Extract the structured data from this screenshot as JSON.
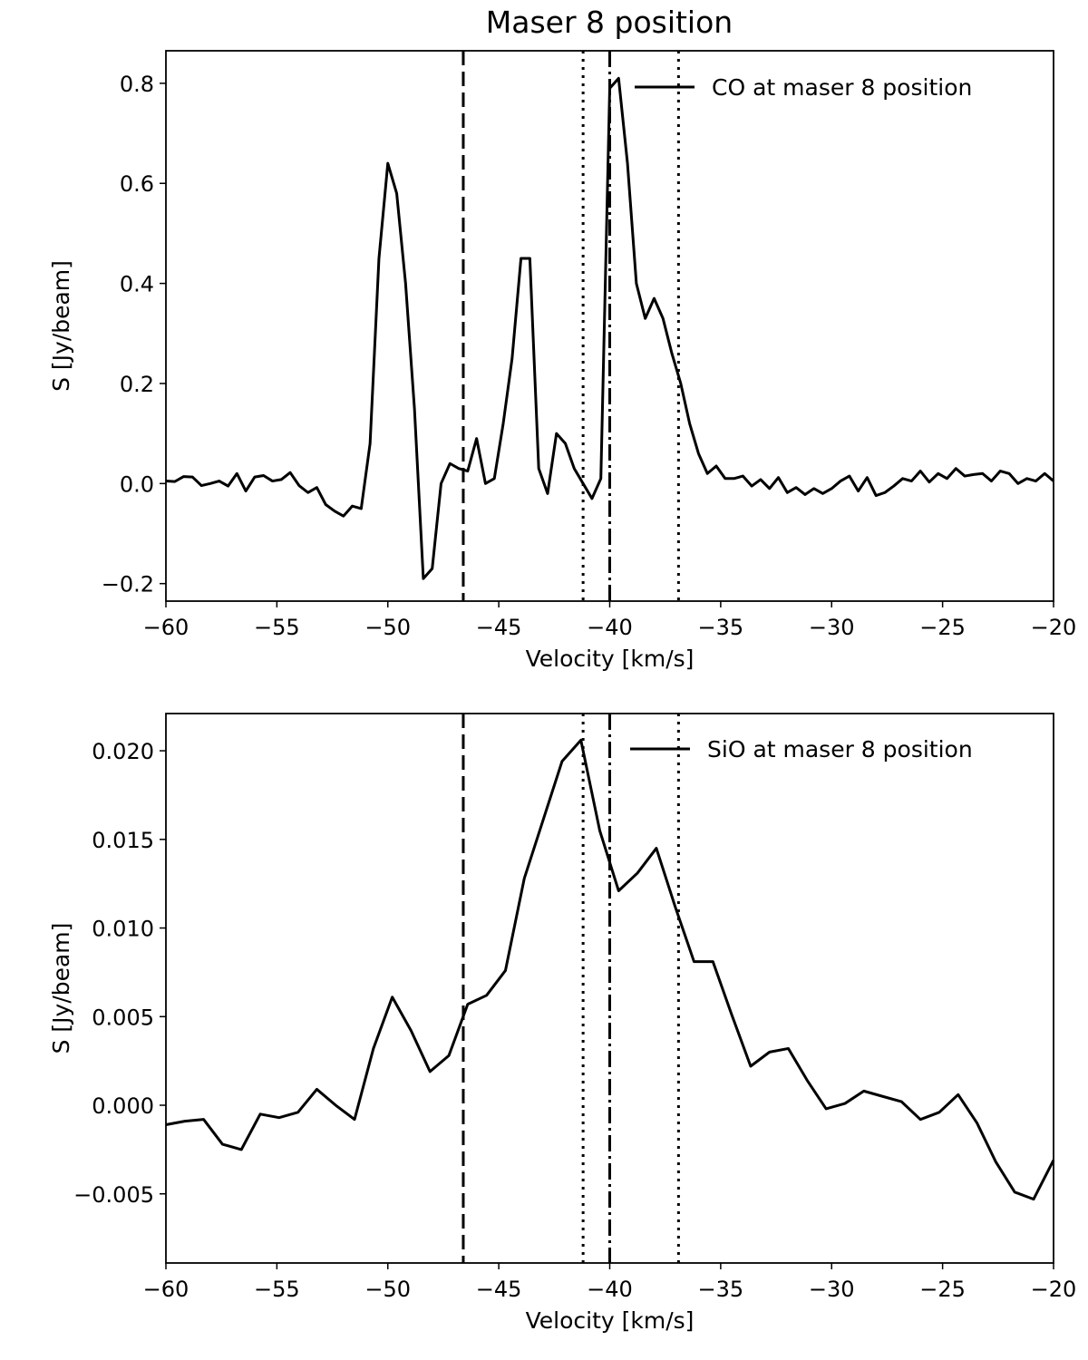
{
  "figure": {
    "title": "Maser 8 position"
  },
  "chart_data": [
    {
      "type": "line",
      "title": "Maser 8 position",
      "xlabel": "Velocity [km/s]",
      "ylabel": "S [Jy/beam]",
      "xlim": [
        -60,
        -20
      ],
      "ylim": [
        -0.235,
        0.865
      ],
      "xticks": [
        -60,
        -55,
        -50,
        -45,
        -40,
        -35,
        -30,
        -25,
        -20
      ],
      "xtick_labels": [
        "−60",
        "−55",
        "−50",
        "−45",
        "−40",
        "−35",
        "−30",
        "−25",
        "−20"
      ],
      "yticks": [
        -0.2,
        0.0,
        0.2,
        0.4,
        0.6,
        0.8
      ],
      "ytick_labels": [
        "−0.2",
        "0.0",
        "0.2",
        "0.4",
        "0.6",
        "0.8"
      ],
      "legend": {
        "label": "CO at maser 8 position",
        "position": "top-right"
      },
      "vlines": [
        {
          "x": -46.6,
          "style": "dashed"
        },
        {
          "x": -41.2,
          "style": "dotted"
        },
        {
          "x": -40.0,
          "style": "dashdot"
        },
        {
          "x": -36.9,
          "style": "dotted"
        }
      ],
      "series": [
        {
          "name": "CO at maser 8 position",
          "x": [
            -60.0,
            -59.6,
            -59.2,
            -58.8,
            -58.4,
            -58.0,
            -57.6,
            -57.2,
            -56.8,
            -56.4,
            -56.0,
            -55.6,
            -55.2,
            -54.8,
            -54.4,
            -54.0,
            -53.6,
            -53.2,
            -52.8,
            -52.4,
            -52.0,
            -51.6,
            -51.2,
            -50.8,
            -50.4,
            -50.0,
            -49.6,
            -49.2,
            -48.8,
            -48.4,
            -48.0,
            -47.6,
            -47.2,
            -46.8,
            -46.4,
            -46.0,
            -45.6,
            -45.2,
            -44.8,
            -44.4,
            -44.0,
            -43.6,
            -43.2,
            -42.8,
            -42.4,
            -42.0,
            -41.6,
            -41.2,
            -40.8,
            -40.4,
            -40.0,
            -39.6,
            -39.2,
            -38.8,
            -38.4,
            -38.0,
            -37.6,
            -37.2,
            -36.8,
            -36.4,
            -36.0,
            -35.6,
            -35.2,
            -34.8,
            -34.4,
            -34.0,
            -33.6,
            -33.2,
            -32.8,
            -32.4,
            -32.0,
            -31.6,
            -31.2,
            -30.8,
            -30.4,
            -30.0,
            -29.6,
            -29.2,
            -28.8,
            -28.4,
            -28.0,
            -27.6,
            -27.2,
            -26.8,
            -26.4,
            -26.0,
            -25.6,
            -25.2,
            -24.8,
            -24.4,
            -24.0,
            -23.6,
            -23.2,
            -22.8,
            -22.4,
            -22.0,
            -21.6,
            -21.2,
            -20.8,
            -20.4,
            -20.0
          ],
          "values": [
            0.005,
            0.004,
            0.014,
            0.013,
            -0.004,
            0.0,
            0.005,
            -0.005,
            0.02,
            -0.015,
            0.013,
            0.016,
            0.005,
            0.008,
            0.022,
            -0.004,
            -0.018,
            -0.008,
            -0.042,
            -0.055,
            -0.065,
            -0.045,
            -0.05,
            0.08,
            0.45,
            0.64,
            0.58,
            0.4,
            0.15,
            -0.19,
            -0.17,
            0.0,
            0.04,
            0.03,
            0.025,
            0.09,
            0.0,
            0.01,
            0.12,
            0.25,
            0.45,
            0.45,
            0.03,
            -0.02,
            0.1,
            0.08,
            0.03,
            0.0,
            -0.03,
            0.01,
            0.79,
            0.81,
            0.64,
            0.4,
            0.33,
            0.37,
            0.33,
            0.26,
            0.2,
            0.12,
            0.06,
            0.02,
            0.035,
            0.01,
            0.01,
            0.015,
            -0.005,
            0.008,
            -0.01,
            0.012,
            -0.018,
            -0.008,
            -0.022,
            -0.01,
            -0.02,
            -0.01,
            0.005,
            0.015,
            -0.015,
            0.012,
            -0.024,
            -0.018,
            -0.005,
            0.01,
            0.005,
            0.025,
            0.003,
            0.02,
            0.01,
            0.03,
            0.015,
            0.018,
            0.02,
            0.005,
            0.025,
            0.02,
            0.0,
            0.01,
            0.005,
            0.02,
            0.005
          ]
        }
      ]
    },
    {
      "type": "line",
      "title": "",
      "xlabel": "Velocity [km/s]",
      "ylabel": "S [Jy/beam]",
      "xlim": [
        -60,
        -20
      ],
      "ylim": [
        -0.0089,
        0.0221
      ],
      "xticks": [
        -60,
        -55,
        -50,
        -45,
        -40,
        -35,
        -30,
        -25,
        -20
      ],
      "xtick_labels": [
        "−60",
        "−55",
        "−50",
        "−45",
        "−40",
        "−35",
        "−30",
        "−25",
        "−20"
      ],
      "yticks": [
        -0.005,
        0.0,
        0.005,
        0.01,
        0.015,
        0.02
      ],
      "ytick_labels": [
        "−0.005",
        "0.000",
        "0.005",
        "0.010",
        "0.015",
        "0.020"
      ],
      "legend": {
        "label": "SiO at maser 8 position",
        "position": "top-right"
      },
      "vlines": [
        {
          "x": -46.6,
          "style": "dashed"
        },
        {
          "x": -41.2,
          "style": "dotted"
        },
        {
          "x": -40.0,
          "style": "dashdot"
        },
        {
          "x": -36.9,
          "style": "dotted"
        }
      ],
      "series": [
        {
          "name": "SiO at maser 8 position",
          "x": [
            -60.0,
            -59.15,
            -58.3,
            -57.45,
            -56.6,
            -55.75,
            -54.9,
            -54.05,
            -53.2,
            -52.35,
            -51.5,
            -50.65,
            -49.8,
            -48.95,
            -48.1,
            -47.25,
            -46.4,
            -45.55,
            -44.7,
            -43.85,
            -43.0,
            -42.15,
            -41.3,
            -40.45,
            -39.6,
            -38.75,
            -37.9,
            -37.05,
            -36.2,
            -35.35,
            -34.5,
            -33.65,
            -32.8,
            -31.95,
            -31.1,
            -30.25,
            -29.4,
            -28.55,
            -27.7,
            -26.85,
            -26.0,
            -25.15,
            -24.3,
            -23.45,
            -22.6,
            -21.75,
            -20.9,
            -20.0
          ],
          "values": [
            -0.0011,
            -0.0009,
            -0.0008,
            -0.0022,
            -0.0025,
            -0.0005,
            -0.0007,
            -0.0004,
            0.0009,
            0.0,
            -0.0008,
            0.0032,
            0.0061,
            0.0042,
            0.0019,
            0.0028,
            0.0057,
            0.0062,
            0.0076,
            0.0128,
            0.0161,
            0.0194,
            0.0206,
            0.0155,
            0.0121,
            0.0131,
            0.0145,
            0.0112,
            0.0081,
            0.0081,
            0.0051,
            0.0022,
            0.003,
            0.0032,
            0.0014,
            -0.0002,
            0.0001,
            0.0008,
            0.0005,
            0.0002,
            -0.0008,
            -0.0004,
            0.0006,
            -0.001,
            -0.0032,
            -0.0049,
            -0.0053,
            -0.0031
          ]
        }
      ]
    }
  ]
}
